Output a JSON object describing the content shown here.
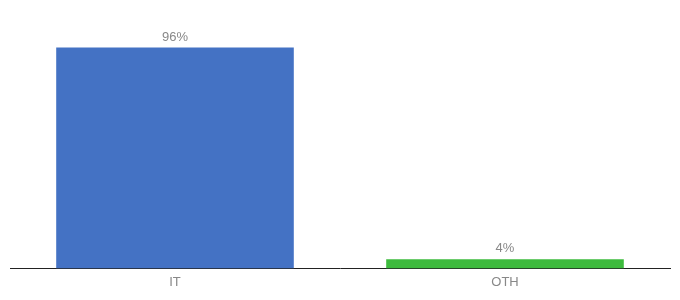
{
  "chart_data": {
    "type": "bar",
    "categories": [
      "IT",
      "OTH"
    ],
    "values": [
      96,
      4
    ],
    "value_labels": [
      "96%",
      "4%"
    ],
    "colors": [
      "#4472c4",
      "#3dbb3d"
    ],
    "ylim": [
      0,
      108
    ],
    "data_labels": true,
    "tick_labels": "x",
    "grid": false
  }
}
